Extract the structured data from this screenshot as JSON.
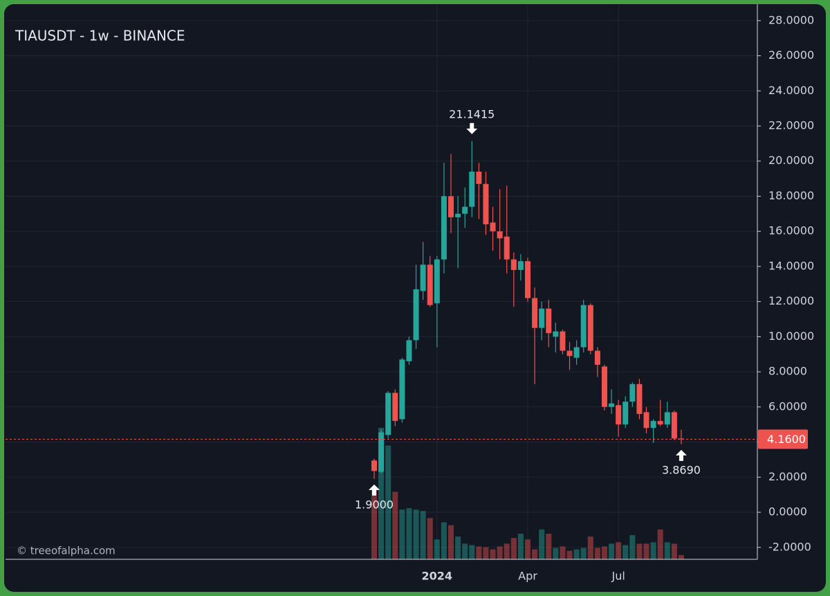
{
  "chart_data": {
    "type": "candlestick",
    "title": "TIAUSDT - 1w - BINANCE",
    "watermark": "© treeofalpha.com",
    "categories": [
      null,
      null,
      null,
      null,
      null,
      null,
      null,
      null,
      null,
      "2024",
      null,
      null,
      null,
      null,
      null,
      null,
      null,
      null,
      null,
      null,
      null,
      null,
      "Apr",
      null,
      null,
      null,
      null,
      null,
      null,
      null,
      null,
      null,
      null,
      null,
      null,
      "Jul",
      null,
      null,
      null,
      null,
      null,
      null,
      null,
      null,
      null
    ],
    "open": [
      2.95,
      2.3,
      4.4,
      6.8,
      5.3,
      8.6,
      9.8,
      12.6,
      14.1,
      11.9,
      14.4,
      18.0,
      16.8,
      17.0,
      17.4,
      19.4,
      18.7,
      16.5,
      16.0,
      15.7,
      14.4,
      13.8,
      14.3,
      12.2,
      10.5,
      11.6,
      10.0,
      10.3,
      9.2,
      8.8,
      9.4,
      11.8,
      9.2,
      8.3,
      6.0,
      6.1,
      5.0,
      6.3,
      7.3,
      5.7,
      4.8,
      5.2,
      5.0,
      5.7,
      4.2
    ],
    "high": [
      3.05,
      4.7,
      6.9,
      7.0,
      8.8,
      10.0,
      14.1,
      15.4,
      14.6,
      14.6,
      19.9,
      20.4,
      18.0,
      18.5,
      21.1415,
      19.9,
      19.4,
      17.4,
      18.4,
      18.6,
      14.8,
      14.7,
      14.5,
      12.8,
      12.0,
      12.1,
      10.8,
      10.4,
      9.7,
      9.8,
      12.1,
      11.9,
      9.4,
      8.4,
      7.0,
      6.4,
      6.6,
      7.4,
      7.6,
      6.0,
      5.3,
      6.4,
      6.3,
      5.8,
      4.7
    ],
    "low": [
      1.9,
      2.2,
      4.2,
      4.9,
      5.1,
      8.4,
      9.3,
      12.1,
      11.7,
      9.4,
      13.6,
      15.9,
      13.9,
      16.2,
      16.8,
      16.7,
      15.8,
      14.9,
      14.4,
      13.6,
      11.7,
      13.2,
      12.0,
      7.3,
      9.8,
      9.4,
      9.1,
      9.0,
      8.1,
      8.4,
      9.1,
      9.0,
      7.7,
      5.8,
      5.6,
      4.3,
      4.8,
      6.0,
      5.3,
      4.5,
      3.95,
      4.9,
      4.8,
      4.1,
      3.869
    ],
    "close": [
      2.35,
      4.55,
      6.8,
      5.2,
      8.7,
      9.8,
      12.7,
      14.1,
      11.8,
      14.4,
      18.0,
      16.8,
      17.0,
      17.4,
      19.4,
      18.7,
      16.4,
      16.0,
      15.6,
      14.4,
      13.8,
      14.3,
      12.2,
      10.5,
      11.6,
      10.2,
      10.3,
      9.2,
      8.9,
      9.4,
      11.8,
      9.2,
      8.4,
      6.0,
      6.2,
      5.0,
      6.3,
      7.3,
      5.6,
      4.8,
      5.2,
      5.0,
      5.7,
      4.2,
      4.16
    ],
    "volume": [
      100,
      185,
      160,
      95,
      70,
      72,
      70,
      68,
      58,
      28,
      52,
      48,
      32,
      22,
      20,
      18,
      17,
      14,
      18,
      22,
      30,
      36,
      28,
      14,
      42,
      36,
      16,
      18,
      12,
      14,
      16,
      32,
      16,
      18,
      22,
      24,
      20,
      34,
      22,
      22,
      24,
      42,
      24,
      22,
      6
    ],
    "high_labels": [
      null,
      null,
      null,
      null,
      null,
      null,
      null,
      null,
      null,
      null,
      null,
      null,
      null,
      null,
      "21.1415",
      null,
      null,
      null,
      null,
      null,
      null,
      null,
      null,
      null,
      null,
      null,
      null,
      null,
      null,
      null,
      null,
      null,
      null,
      null,
      null,
      null,
      null,
      null,
      null,
      null,
      null,
      null,
      null,
      null,
      null
    ],
    "low_labels": [
      "1.9000",
      null,
      null,
      null,
      null,
      null,
      null,
      null,
      null,
      null,
      null,
      null,
      null,
      null,
      null,
      null,
      null,
      null,
      null,
      null,
      null,
      null,
      null,
      null,
      null,
      null,
      null,
      null,
      null,
      null,
      null,
      null,
      null,
      null,
      null,
      null,
      null,
      null,
      null,
      null,
      null,
      null,
      null,
      null,
      "3.8690"
    ],
    "last_price_label": "4.1600",
    "up_color": "#26a69a",
    "down_color": "#ef5350",
    "ylim": [
      -2.68,
      28.86
    ],
    "yticks": [
      {
        "value": -2,
        "label": "-2.0000"
      },
      {
        "value": 0,
        "label": "0.0000"
      },
      {
        "value": 2,
        "label": "2.0000"
      },
      {
        "value": 4,
        "label": "4.0000"
      },
      {
        "value": 6,
        "label": "6.0000"
      },
      {
        "value": 8,
        "label": "8.0000"
      },
      {
        "value": 10,
        "label": "10.0000"
      },
      {
        "value": 12,
        "label": "12.0000"
      },
      {
        "value": 14,
        "label": "14.0000"
      },
      {
        "value": 16,
        "label": "16.0000"
      },
      {
        "value": 18,
        "label": "18.0000"
      },
      {
        "value": 20,
        "label": "20.0000"
      },
      {
        "value": 22,
        "label": "22.0000"
      },
      {
        "value": 24,
        "label": "24.0000"
      },
      {
        "value": 26,
        "label": "26.0000"
      },
      {
        "value": 28,
        "label": "28.0000"
      }
    ],
    "grid": true
  }
}
